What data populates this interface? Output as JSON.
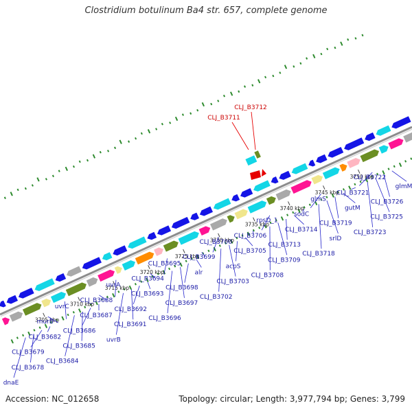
{
  "title": "Clostridium botulinum Ba4 str. 657, complete genome",
  "accession_text": "Accession: NC_012658",
  "summary_text": "Topology: circular; Length: 3,977,794 bp; Genes: 3,799",
  "colors": {
    "backbone": "#8c8c8c",
    "gene_blue": "#1414e6",
    "label_blue": "#1a1aa6",
    "highlight_red": "#e60000",
    "gc_green": "#2e8b2e",
    "cyan": "#13d6e6",
    "magenta": "#ff1493",
    "olive": "#6b8e23",
    "khaki": "#f0e68c",
    "grey": "#a9a9a9",
    "orange": "#ff8c00",
    "pink": "#ffb6c1"
  },
  "ticks": [
    {
      "label": "3705 kbp"
    },
    {
      "label": "3710 kbp"
    },
    {
      "label": "3715 kbp"
    },
    {
      "label": "3720 kbp"
    },
    {
      "label": "3725 kbp"
    },
    {
      "label": "3730 kbp"
    },
    {
      "label": "3735 kbp"
    },
    {
      "label": "3740 kbp"
    },
    {
      "label": "3745 kbp"
    },
    {
      "label": "3750 kbp"
    }
  ],
  "gene_labels": [
    "dnaE",
    "CLJ_B3678",
    "CLJ_B3679",
    "CLJ_B3682",
    "murB",
    "uvrC",
    "CLJ_B3684",
    "CLJ_B3685",
    "CLJ_B3686",
    "CLJ_B3687",
    "CLJ_B3688",
    "uvrA",
    "uvrB",
    "CLJ_B3691",
    "CLJ_B3692",
    "CLJ_B3693",
    "CLJ_B3694",
    "CLJ_B3695",
    "CLJ_B3696",
    "CLJ_B3697",
    "CLJ_B3698",
    "alr",
    "CLJ_B3699",
    "CLJ_B3700",
    "CLJ_B3702",
    "CLJ_B3703",
    "acpS",
    "CLJ_B3705",
    "CLJ_B3706",
    "rpsD_1",
    "CLJ_B3708",
    "CLJ_B3709",
    "CLJ_B3713",
    "CLJ_B3714",
    "sodC",
    "glmS",
    "CLJ_B3718",
    "srlD",
    "CLJ_B3719",
    "gutM",
    "CLJ_B3721",
    "CLJ_B3722",
    "CLJ_B3723",
    "CLJ_B3725",
    "CLJ_B3726",
    "glmM"
  ],
  "highlight_labels": [
    "CLJ_B3711",
    "CLJ_B3712"
  ]
}
